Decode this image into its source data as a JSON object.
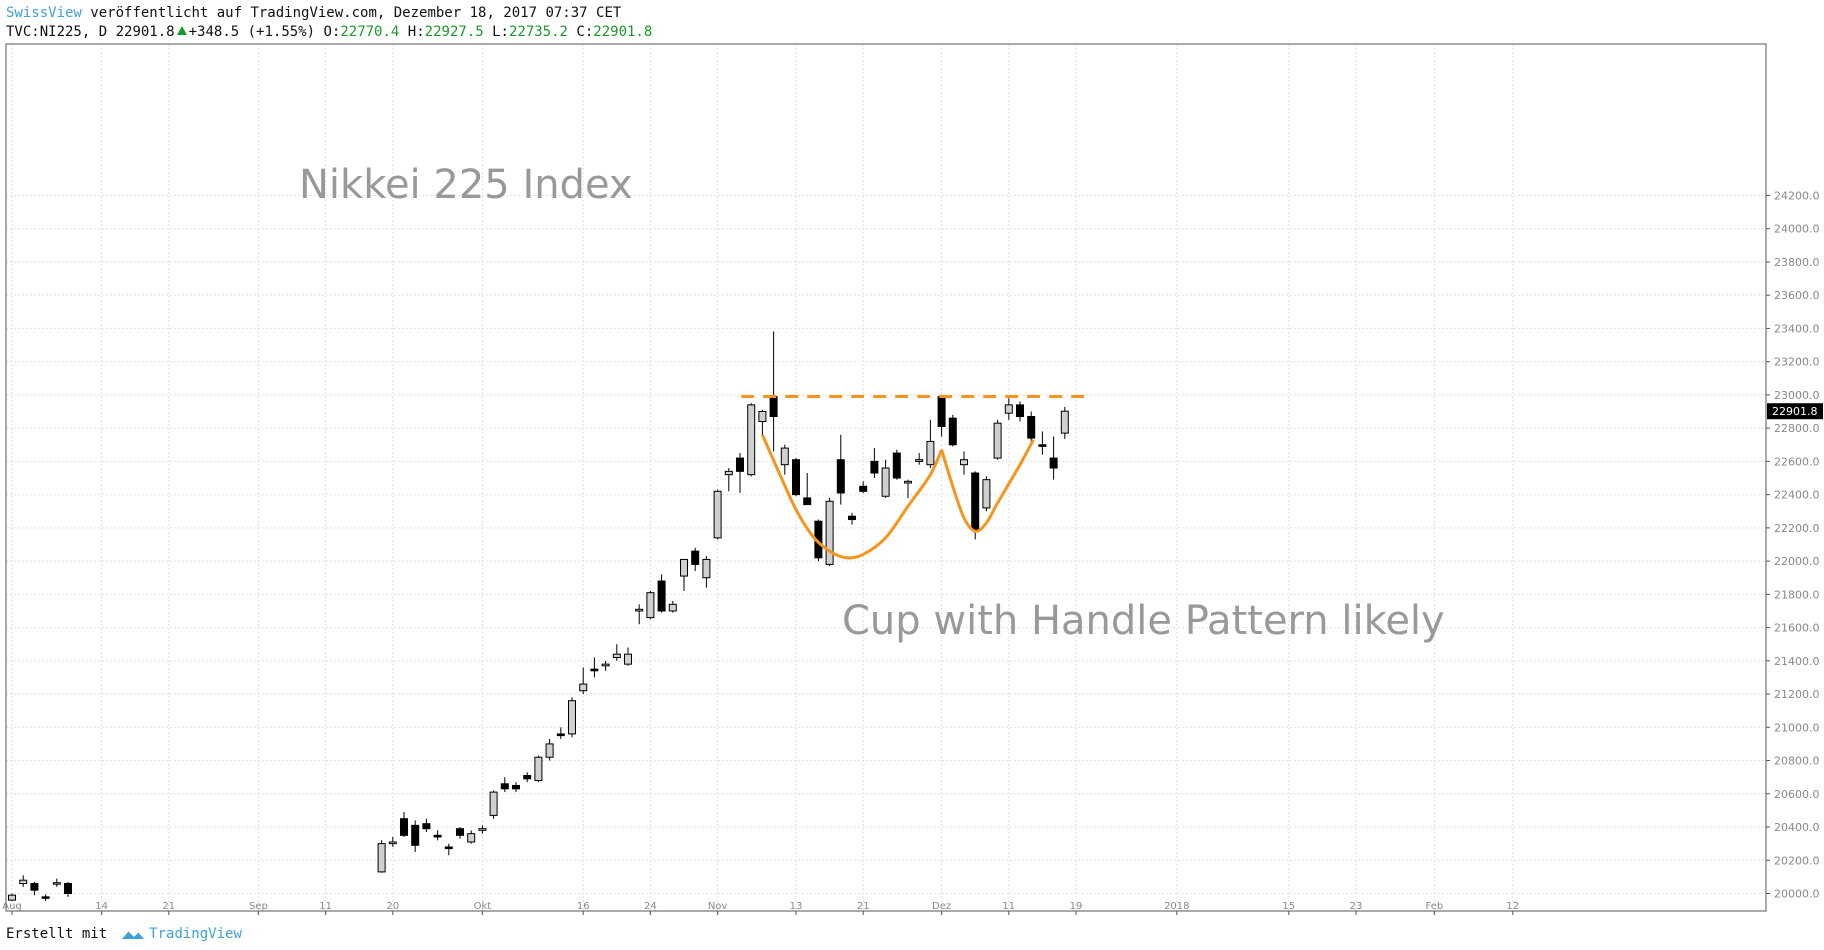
{
  "header": {
    "author": "SwissView",
    "published": "veröffentlicht auf TradingView.com, Dezember 18, 2017 07:37 CET",
    "symbol": "TVC:NI225, D",
    "last": "22901.8",
    "change": "+348.5 (+1.55%)",
    "open_label": "O:",
    "open": "22770.4",
    "high_label": "H:",
    "high": "22927.5",
    "low_label": "L:",
    "low": "22735.2",
    "close_label": "C:",
    "close": "22901.8"
  },
  "annotations": {
    "title": "Nikkei 225 Index",
    "pattern_note": "Cup with Handle Pattern likely"
  },
  "footer": {
    "created_with": "Erstellt mit",
    "brand": "TradingView"
  },
  "colors": {
    "up_candle": "#d0d0d0",
    "down_candle": "#000000",
    "drawing": "#f7941d",
    "text_muted": "#999999",
    "grid": "#e2e2e2",
    "brand_blue": "#3fa0d8"
  },
  "chart_data": {
    "type": "candlestick",
    "ylim": [
      19950,
      24350
    ],
    "y_ticks": [
      20000,
      20200,
      20400,
      20600,
      20800,
      21000,
      21200,
      21400,
      21600,
      21800,
      22000,
      22200,
      22400,
      22600,
      22800,
      23000,
      23200,
      23400,
      23600,
      23800,
      24000,
      24200
    ],
    "y_tick_labels": [
      "20000.0",
      "20200.0",
      "20400.0",
      "20600.0",
      "20800.0",
      "21000.0",
      "21200.0",
      "21400.0",
      "21600.0",
      "21800.0",
      "22000.0",
      "22200.0",
      "22400.0",
      "22600.0",
      "22800.0",
      "23000.0",
      "23200.0",
      "23400.0",
      "23600.0",
      "23800.0",
      "24000.0",
      "24200.0"
    ],
    "x_ticks": [
      {
        "label": "Aug",
        "i": 0
      },
      {
        "label": "14",
        "i": 8
      },
      {
        "label": "21",
        "i": 14
      },
      {
        "label": "Sep",
        "i": 22
      },
      {
        "label": "11",
        "i": 28
      },
      {
        "label": "20",
        "i": 34
      },
      {
        "label": "Okt",
        "i": 42
      },
      {
        "label": "16",
        "i": 51
      },
      {
        "label": "24",
        "i": 57
      },
      {
        "label": "Nov",
        "i": 63
      },
      {
        "label": "13",
        "i": 70
      },
      {
        "label": "21",
        "i": 76
      },
      {
        "label": "Dez",
        "i": 83
      },
      {
        "label": "11",
        "i": 89
      },
      {
        "label": "19",
        "i": 95
      },
      {
        "label": "2018",
        "i": 104
      },
      {
        "label": "15",
        "i": 114
      },
      {
        "label": "23",
        "i": 120
      },
      {
        "label": "Feb",
        "i": 127
      },
      {
        "label": "12",
        "i": 134
      }
    ],
    "last_price": 22901.8,
    "candles": [
      {
        "i": 0,
        "o": 19960,
        "h": 20000,
        "l": 19955,
        "c": 19990
      },
      {
        "i": 1,
        "o": 20060,
        "h": 20110,
        "l": 20040,
        "c": 20080
      },
      {
        "i": 2,
        "o": 20060,
        "h": 20070,
        "l": 19990,
        "c": 20020
      },
      {
        "i": 3,
        "o": 19980,
        "h": 19995,
        "l": 19955,
        "c": 19975
      },
      {
        "i": 4,
        "o": 20060,
        "h": 20090,
        "l": 20040,
        "c": 20065
      },
      {
        "i": 5,
        "o": 20060,
        "h": 20070,
        "l": 19980,
        "c": 20000
      },
      {
        "i": 33,
        "o": 20130,
        "h": 20320,
        "l": 20125,
        "c": 20300
      },
      {
        "i": 34,
        "o": 20300,
        "h": 20340,
        "l": 20280,
        "c": 20310
      },
      {
        "i": 35,
        "o": 20450,
        "h": 20490,
        "l": 20340,
        "c": 20350
      },
      {
        "i": 36,
        "o": 20410,
        "h": 20440,
        "l": 20250,
        "c": 20290
      },
      {
        "i": 37,
        "o": 20420,
        "h": 20450,
        "l": 20370,
        "c": 20390
      },
      {
        "i": 38,
        "o": 20350,
        "h": 20380,
        "l": 20320,
        "c": 20340
      },
      {
        "i": 39,
        "o": 20280,
        "h": 20300,
        "l": 20230,
        "c": 20270
      },
      {
        "i": 40,
        "o": 20390,
        "h": 20400,
        "l": 20330,
        "c": 20350
      },
      {
        "i": 41,
        "o": 20310,
        "h": 20380,
        "l": 20300,
        "c": 20360
      },
      {
        "i": 42,
        "o": 20380,
        "h": 20410,
        "l": 20360,
        "c": 20390
      },
      {
        "i": 43,
        "o": 20470,
        "h": 20620,
        "l": 20450,
        "c": 20610
      },
      {
        "i": 44,
        "o": 20660,
        "h": 20700,
        "l": 20610,
        "c": 20630
      },
      {
        "i": 45,
        "o": 20650,
        "h": 20670,
        "l": 20610,
        "c": 20630
      },
      {
        "i": 46,
        "o": 20710,
        "h": 20730,
        "l": 20670,
        "c": 20690
      },
      {
        "i": 47,
        "o": 20680,
        "h": 20830,
        "l": 20670,
        "c": 20820
      },
      {
        "i": 48,
        "o": 20820,
        "h": 20930,
        "l": 20800,
        "c": 20900
      },
      {
        "i": 49,
        "o": 20960,
        "h": 21000,
        "l": 20930,
        "c": 20950
      },
      {
        "i": 50,
        "o": 20960,
        "h": 21180,
        "l": 20940,
        "c": 21160
      },
      {
        "i": 51,
        "o": 21220,
        "h": 21360,
        "l": 21200,
        "c": 21260
      },
      {
        "i": 52,
        "o": 21350,
        "h": 21420,
        "l": 21300,
        "c": 21340
      },
      {
        "i": 53,
        "o": 21370,
        "h": 21400,
        "l": 21340,
        "c": 21380
      },
      {
        "i": 54,
        "o": 21420,
        "h": 21500,
        "l": 21400,
        "c": 21440
      },
      {
        "i": 55,
        "o": 21380,
        "h": 21480,
        "l": 21370,
        "c": 21440
      },
      {
        "i": 56,
        "o": 21700,
        "h": 21740,
        "l": 21620,
        "c": 21710
      },
      {
        "i": 57,
        "o": 21660,
        "h": 21820,
        "l": 21650,
        "c": 21810
      },
      {
        "i": 58,
        "o": 21880,
        "h": 21920,
        "l": 21690,
        "c": 21700
      },
      {
        "i": 59,
        "o": 21700,
        "h": 21760,
        "l": 21690,
        "c": 21740
      },
      {
        "i": 60,
        "o": 21910,
        "h": 21980,
        "l": 21820,
        "c": 22010
      },
      {
        "i": 61,
        "o": 22060,
        "h": 22080,
        "l": 21940,
        "c": 21980
      },
      {
        "i": 62,
        "o": 21900,
        "h": 22030,
        "l": 21840,
        "c": 22010
      },
      {
        "i": 63,
        "o": 22140,
        "h": 22430,
        "l": 22130,
        "c": 22420
      },
      {
        "i": 64,
        "o": 22520,
        "h": 22560,
        "l": 22420,
        "c": 22540
      },
      {
        "i": 65,
        "o": 22620,
        "h": 22650,
        "l": 22410,
        "c": 22540
      },
      {
        "i": 66,
        "o": 22520,
        "h": 22950,
        "l": 22510,
        "c": 22940
      },
      {
        "i": 67,
        "o": 22840,
        "h": 22910,
        "l": 22740,
        "c": 22900
      },
      {
        "i": 68,
        "o": 22990,
        "h": 23382,
        "l": 22660,
        "c": 22870
      },
      {
        "i": 69,
        "o": 22580,
        "h": 22700,
        "l": 22520,
        "c": 22680
      },
      {
        "i": 70,
        "o": 22610,
        "h": 22620,
        "l": 22390,
        "c": 22400
      },
      {
        "i": 71,
        "o": 22380,
        "h": 22530,
        "l": 22340,
        "c": 22340
      },
      {
        "i": 72,
        "o": 22240,
        "h": 22250,
        "l": 22000,
        "c": 22020
      },
      {
        "i": 73,
        "o": 21980,
        "h": 22380,
        "l": 21970,
        "c": 22360
      },
      {
        "i": 74,
        "o": 22610,
        "h": 22760,
        "l": 22340,
        "c": 22410
      },
      {
        "i": 75,
        "o": 22270,
        "h": 22290,
        "l": 22220,
        "c": 22250
      },
      {
        "i": 76,
        "o": 22450,
        "h": 22480,
        "l": 22410,
        "c": 22420
      },
      {
        "i": 77,
        "o": 22600,
        "h": 22680,
        "l": 22500,
        "c": 22530
      },
      {
        "i": 78,
        "o": 22390,
        "h": 22610,
        "l": 22380,
        "c": 22560
      },
      {
        "i": 79,
        "o": 22650,
        "h": 22670,
        "l": 22490,
        "c": 22500
      },
      {
        "i": 80,
        "o": 22470,
        "h": 22490,
        "l": 22380,
        "c": 22480
      },
      {
        "i": 81,
        "o": 22600,
        "h": 22650,
        "l": 22580,
        "c": 22610
      },
      {
        "i": 82,
        "o": 22580,
        "h": 22850,
        "l": 22560,
        "c": 22720
      },
      {
        "i": 83,
        "o": 22990,
        "h": 23000,
        "l": 22750,
        "c": 22810
      },
      {
        "i": 84,
        "o": 22860,
        "h": 22880,
        "l": 22690,
        "c": 22700
      },
      {
        "i": 85,
        "o": 22580,
        "h": 22660,
        "l": 22520,
        "c": 22610
      },
      {
        "i": 86,
        "o": 22530,
        "h": 22540,
        "l": 22130,
        "c": 22190
      },
      {
        "i": 87,
        "o": 22320,
        "h": 22510,
        "l": 22300,
        "c": 22490
      },
      {
        "i": 88,
        "o": 22620,
        "h": 22850,
        "l": 22610,
        "c": 22830
      },
      {
        "i": 89,
        "o": 22890,
        "h": 22980,
        "l": 22850,
        "c": 22940
      },
      {
        "i": 90,
        "o": 22940,
        "h": 22960,
        "l": 22840,
        "c": 22870
      },
      {
        "i": 91,
        "o": 22870,
        "h": 22900,
        "l": 22720,
        "c": 22740
      },
      {
        "i": 92,
        "o": 22700,
        "h": 22780,
        "l": 22640,
        "c": 22690
      },
      {
        "i": 93,
        "o": 22620,
        "h": 22750,
        "l": 22490,
        "c": 22560
      },
      {
        "i": 94,
        "o": 22770,
        "h": 22927.5,
        "l": 22735.2,
        "c": 22901.8
      }
    ],
    "resistance_line": {
      "i_from": 66,
      "i_to": 95,
      "value": 22990
    },
    "cup_curve": [
      {
        "i": 67,
        "v": 22760
      },
      {
        "i": 68.5,
        "v": 22530
      },
      {
        "i": 70,
        "v": 22310
      },
      {
        "i": 71.5,
        "v": 22150
      },
      {
        "i": 73,
        "v": 22060
      },
      {
        "i": 74.5,
        "v": 22020
      },
      {
        "i": 76,
        "v": 22040
      },
      {
        "i": 78,
        "v": 22140
      },
      {
        "i": 80,
        "v": 22330
      },
      {
        "i": 82,
        "v": 22520
      },
      {
        "i": 83,
        "v": 22670
      }
    ],
    "handle_curve": [
      {
        "i": 83,
        "v": 22670
      },
      {
        "i": 84,
        "v": 22450
      },
      {
        "i": 85,
        "v": 22260
      },
      {
        "i": 86,
        "v": 22180
      },
      {
        "i": 87,
        "v": 22230
      },
      {
        "i": 88,
        "v": 22350
      },
      {
        "i": 90,
        "v": 22580
      },
      {
        "i": 91.2,
        "v": 22730
      }
    ]
  }
}
